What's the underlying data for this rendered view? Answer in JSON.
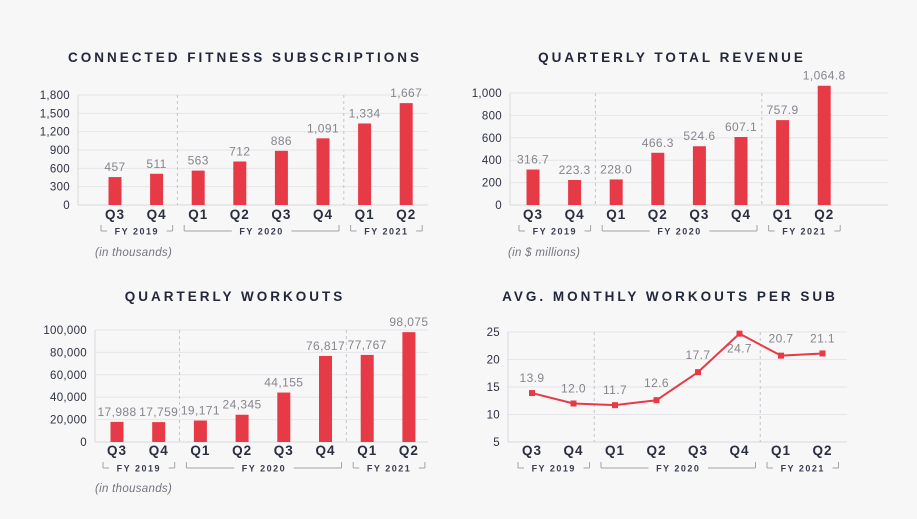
{
  "page": {
    "colors": {
      "background": "#f7f7f8",
      "accent_red": "#e73a47",
      "title_navy": "#23273a",
      "axis_text": "#2e3140",
      "value_gray": "#85858d",
      "grid": "#e6e6ea",
      "axis_line": "#d9d9de",
      "separator": "#c5c5ca",
      "bracket": "#a3a3aa"
    }
  },
  "chart_data": [
    {
      "id": "connected-fitness-subscriptions",
      "type": "bar",
      "title": "CONNECTED FITNESS SUBSCRIPTIONS",
      "note": "(in thousands)",
      "categories": [
        "Q3",
        "Q4",
        "Q1",
        "Q2",
        "Q3",
        "Q4",
        "Q1",
        "Q2"
      ],
      "groups": [
        {
          "label": "FY 2019",
          "from": 0,
          "to": 1
        },
        {
          "label": "FY 2020",
          "from": 2,
          "to": 5
        },
        {
          "label": "FY 2021",
          "from": 6,
          "to": 7
        }
      ],
      "values": [
        457,
        511,
        563,
        712,
        886,
        1091,
        1334,
        1667
      ],
      "value_labels": [
        "457",
        "511",
        "563",
        "712",
        "886",
        "1,091",
        "1,334",
        "1,667"
      ],
      "ylim": [
        0,
        1800
      ],
      "yticks": [
        0,
        300,
        600,
        900,
        1200,
        1500,
        1800
      ],
      "ytick_labels": [
        "0",
        "300",
        "600",
        "900",
        "1,200",
        "1,500",
        "1,800"
      ],
      "grid": true,
      "separators_after": [
        1,
        5
      ]
    },
    {
      "id": "quarterly-total-revenue",
      "type": "bar",
      "title": "QUARTERLY TOTAL REVENUE",
      "note": "(in $ millions)",
      "categories": [
        "Q3",
        "Q4",
        "Q1",
        "Q2",
        "Q3",
        "Q4",
        "Q1",
        "Q2"
      ],
      "groups": [
        {
          "label": "FY 2019",
          "from": 0,
          "to": 1
        },
        {
          "label": "FY 2020",
          "from": 2,
          "to": 5
        },
        {
          "label": "FY 2021",
          "from": 6,
          "to": 7
        }
      ],
      "values": [
        316.7,
        223.3,
        228.0,
        466.3,
        524.6,
        607.1,
        757.9,
        1064.8
      ],
      "value_labels": [
        "316.7",
        "223.3",
        "228.0",
        "466.3",
        "524.6",
        "607.1",
        "757.9",
        "1,064.8"
      ],
      "ylim": [
        0,
        1000
      ],
      "yticks": [
        0,
        200,
        400,
        600,
        800,
        1000
      ],
      "ytick_labels": [
        "0",
        "200",
        "400",
        "600",
        "800",
        "1,000"
      ],
      "grid": true,
      "separators_after": [
        1,
        5
      ]
    },
    {
      "id": "quarterly-workouts",
      "type": "bar",
      "title": "QUARTERLY WORKOUTS",
      "note": "(in thousands)",
      "categories": [
        "Q3",
        "Q4",
        "Q1",
        "Q2",
        "Q3",
        "Q4",
        "Q1",
        "Q2"
      ],
      "groups": [
        {
          "label": "FY 2019",
          "from": 0,
          "to": 1
        },
        {
          "label": "FY 2020",
          "from": 2,
          "to": 5
        },
        {
          "label": "FY 2021",
          "from": 6,
          "to": 7
        }
      ],
      "values": [
        17988,
        17759,
        19171,
        24345,
        44155,
        76817,
        77767,
        98075
      ],
      "value_labels": [
        "17,988",
        "17,759",
        "19,171",
        "24,345",
        "44,155",
        "76,817",
        "77,767",
        "98,075"
      ],
      "ylim": [
        0,
        100000
      ],
      "yticks": [
        0,
        20000,
        40000,
        60000,
        80000,
        100000
      ],
      "ytick_labels": [
        "0",
        "20,000",
        "40,000",
        "60,000",
        "80,000",
        "100,000"
      ],
      "grid": true,
      "separators_after": [
        1,
        5
      ]
    },
    {
      "id": "avg-monthly-workouts-per-sub",
      "type": "line",
      "title": "AVG. MONTHLY WORKOUTS PER SUB",
      "marker": "square",
      "categories": [
        "Q3",
        "Q4",
        "Q1",
        "Q2",
        "Q3",
        "Q4",
        "Q1",
        "Q2"
      ],
      "groups": [
        {
          "label": "FY 2019",
          "from": 0,
          "to": 1
        },
        {
          "label": "FY 2020",
          "from": 2,
          "to": 5
        },
        {
          "label": "FY 2021",
          "from": 6,
          "to": 7
        }
      ],
      "values": [
        13.9,
        12.0,
        11.7,
        12.6,
        17.7,
        24.7,
        20.7,
        21.1
      ],
      "value_labels": [
        "13.9",
        "12.0",
        "11.7",
        "12.6",
        "17.7",
        "24.7",
        "20.7",
        "21.1"
      ],
      "ylim": [
        5,
        25
      ],
      "yticks": [
        5,
        10,
        15,
        20,
        25
      ],
      "ytick_labels": [
        "5",
        "10",
        "15",
        "20",
        "25"
      ],
      "grid": true,
      "separators_after": [
        1,
        5
      ]
    }
  ]
}
